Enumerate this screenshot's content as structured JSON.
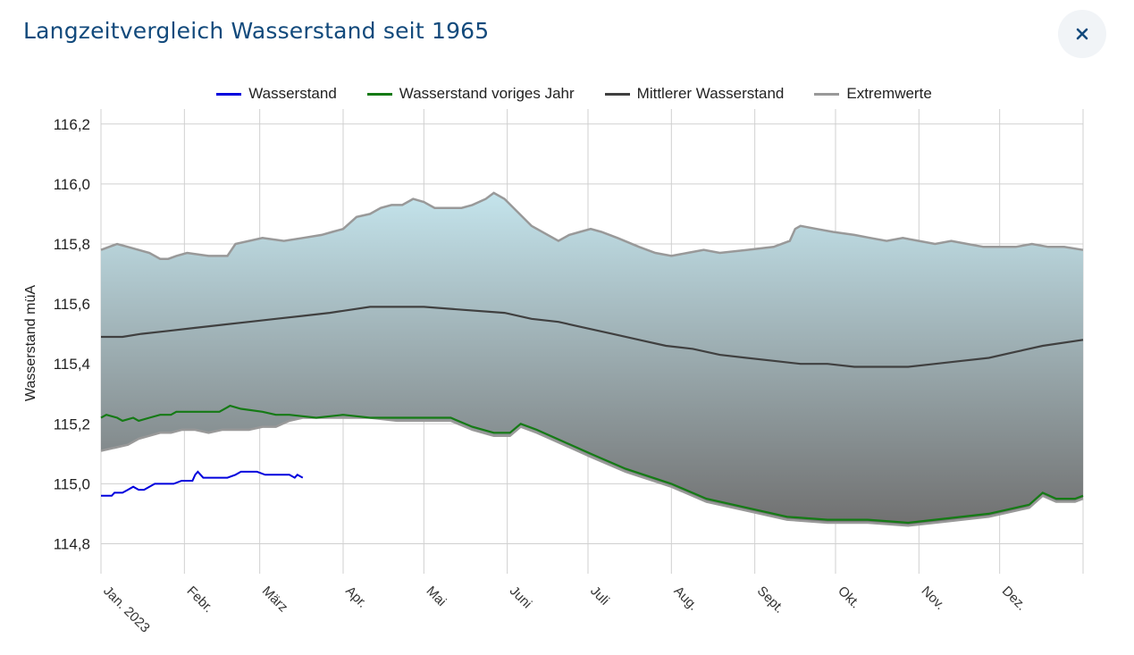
{
  "title": "Langzeitvergleich Wasserstand seit 1965",
  "close": {
    "icon": "close-icon"
  },
  "colors": {
    "current": "#0000dd",
    "last_year": "#157a15",
    "mean": "#404040",
    "extremes": "#999999",
    "band_top": "#c4e4ec",
    "band_bottom": "#707070",
    "grid": "#d0d0d0",
    "title": "#124a7c"
  },
  "chart_data": {
    "type": "line",
    "title": "Langzeitvergleich Wasserstand seit 1965",
    "xlabel": "",
    "ylabel": "Wasserstand müA",
    "ylim": [
      114.7,
      116.25
    ],
    "xlim": [
      0,
      365
    ],
    "grid": true,
    "legend_position": "top",
    "y_ticks": [
      "116,2",
      "116,0",
      "115,8",
      "115,6",
      "115,4",
      "115,2",
      "115,0",
      "114,8"
    ],
    "y_tick_values": [
      116.2,
      116.0,
      115.8,
      115.6,
      115.4,
      115.2,
      115.0,
      114.8
    ],
    "x_tick_days": [
      0,
      31,
      59,
      90,
      120,
      151,
      181,
      212,
      243,
      273,
      304,
      334,
      365
    ],
    "months": [
      "Jan. 2023",
      "Febr.",
      "März",
      "Apr.",
      "Mai",
      "Juni",
      "Juli",
      "Aug.",
      "Sept.",
      "Okt.",
      "Nov.",
      "Dez."
    ],
    "legend": [
      "Wasserstand",
      "Wasserstand voriges Jahr",
      "Mittlerer Wasserstand",
      "Extremwerte"
    ],
    "series": [
      {
        "name": "Wasserstand",
        "x": [
          0,
          4,
          5,
          8,
          10,
          12,
          14,
          16,
          18,
          20,
          24,
          27,
          30,
          32,
          34,
          35,
          36,
          38,
          40,
          44,
          47,
          50,
          52,
          55,
          58,
          61,
          65,
          68,
          70,
          72,
          73,
          75
        ],
        "y": [
          114.96,
          114.96,
          114.97,
          114.97,
          114.98,
          114.99,
          114.98,
          114.98,
          114.99,
          115.0,
          115.0,
          115.0,
          115.01,
          115.01,
          115.01,
          115.03,
          115.04,
          115.02,
          115.02,
          115.02,
          115.02,
          115.03,
          115.04,
          115.04,
          115.04,
          115.03,
          115.03,
          115.03,
          115.03,
          115.02,
          115.03,
          115.02
        ]
      },
      {
        "name": "Wasserstand voriges Jahr",
        "x": [
          0,
          2,
          6,
          8,
          12,
          14,
          18,
          22,
          26,
          28,
          40,
          44,
          48,
          52,
          60,
          65,
          70,
          80,
          90,
          100,
          110,
          130,
          138,
          146,
          152,
          156,
          162,
          172,
          182,
          195,
          212,
          225,
          240,
          255,
          270,
          285,
          300,
          310,
          330,
          340,
          345,
          350,
          355,
          362,
          365
        ],
        "y": [
          115.22,
          115.23,
          115.22,
          115.21,
          115.22,
          115.21,
          115.22,
          115.23,
          115.23,
          115.24,
          115.24,
          115.24,
          115.26,
          115.25,
          115.24,
          115.23,
          115.23,
          115.22,
          115.23,
          115.22,
          115.22,
          115.22,
          115.19,
          115.17,
          115.17,
          115.2,
          115.18,
          115.14,
          115.1,
          115.05,
          115.0,
          114.95,
          114.92,
          114.89,
          114.88,
          114.88,
          114.87,
          114.88,
          114.9,
          114.92,
          114.93,
          114.97,
          114.95,
          114.95,
          114.96
        ]
      },
      {
        "name": "Mittlerer Wasserstand",
        "x": [
          0,
          8,
          15,
          25,
          35,
          45,
          55,
          65,
          75,
          85,
          100,
          110,
          120,
          135,
          150,
          160,
          170,
          180,
          190,
          200,
          210,
          220,
          230,
          240,
          250,
          260,
          270,
          280,
          290,
          300,
          310,
          320,
          330,
          340,
          350,
          365
        ],
        "y": [
          115.49,
          115.49,
          115.5,
          115.51,
          115.52,
          115.53,
          115.54,
          115.55,
          115.56,
          115.57,
          115.59,
          115.59,
          115.59,
          115.58,
          115.57,
          115.55,
          115.54,
          115.52,
          115.5,
          115.48,
          115.46,
          115.45,
          115.43,
          115.42,
          115.41,
          115.4,
          115.4,
          115.39,
          115.39,
          115.39,
          115.4,
          115.41,
          115.42,
          115.44,
          115.46,
          115.48
        ]
      },
      {
        "name": "Extremwerte (Maximum)",
        "x": [
          0,
          3,
          6,
          10,
          14,
          18,
          22,
          25,
          28,
          32,
          40,
          47,
          50,
          60,
          68,
          75,
          82,
          86,
          90,
          95,
          100,
          104,
          108,
          112,
          116,
          120,
          124,
          128,
          134,
          138,
          143,
          146,
          150,
          160,
          170,
          174,
          178,
          182,
          186,
          192,
          200,
          206,
          212,
          218,
          224,
          230,
          240,
          250,
          256,
          258,
          260,
          266,
          272,
          280,
          286,
          292,
          298,
          304,
          310,
          316,
          322,
          328,
          334,
          340,
          346,
          352,
          358,
          365
        ],
        "y": [
          115.78,
          115.79,
          115.8,
          115.79,
          115.78,
          115.77,
          115.75,
          115.75,
          115.76,
          115.77,
          115.76,
          115.76,
          115.8,
          115.82,
          115.81,
          115.82,
          115.83,
          115.84,
          115.85,
          115.89,
          115.9,
          115.92,
          115.93,
          115.93,
          115.95,
          115.94,
          115.92,
          115.92,
          115.92,
          115.93,
          115.95,
          115.97,
          115.95,
          115.86,
          115.81,
          115.83,
          115.84,
          115.85,
          115.84,
          115.82,
          115.79,
          115.77,
          115.76,
          115.77,
          115.78,
          115.77,
          115.78,
          115.79,
          115.81,
          115.85,
          115.86,
          115.85,
          115.84,
          115.83,
          115.82,
          115.81,
          115.82,
          115.81,
          115.8,
          115.81,
          115.8,
          115.79,
          115.79,
          115.79,
          115.8,
          115.79,
          115.79,
          115.78
        ]
      },
      {
        "name": "Extremwerte (Minimum)",
        "x": [
          0,
          5,
          10,
          14,
          18,
          22,
          26,
          30,
          35,
          40,
          45,
          50,
          55,
          60,
          65,
          70,
          75,
          80,
          90,
          100,
          110,
          130,
          138,
          146,
          152,
          156,
          162,
          172,
          182,
          195,
          212,
          225,
          240,
          255,
          270,
          285,
          300,
          310,
          330,
          340,
          345,
          350,
          355,
          362,
          365
        ],
        "y": [
          115.11,
          115.12,
          115.13,
          115.15,
          115.16,
          115.17,
          115.17,
          115.18,
          115.18,
          115.17,
          115.18,
          115.18,
          115.18,
          115.19,
          115.19,
          115.21,
          115.22,
          115.22,
          115.22,
          115.22,
          115.21,
          115.21,
          115.18,
          115.16,
          115.16,
          115.19,
          115.17,
          115.13,
          115.09,
          115.04,
          114.99,
          114.94,
          114.91,
          114.88,
          114.87,
          114.87,
          114.86,
          114.87,
          114.89,
          114.91,
          114.92,
          114.96,
          114.94,
          114.94,
          114.95
        ]
      }
    ]
  }
}
